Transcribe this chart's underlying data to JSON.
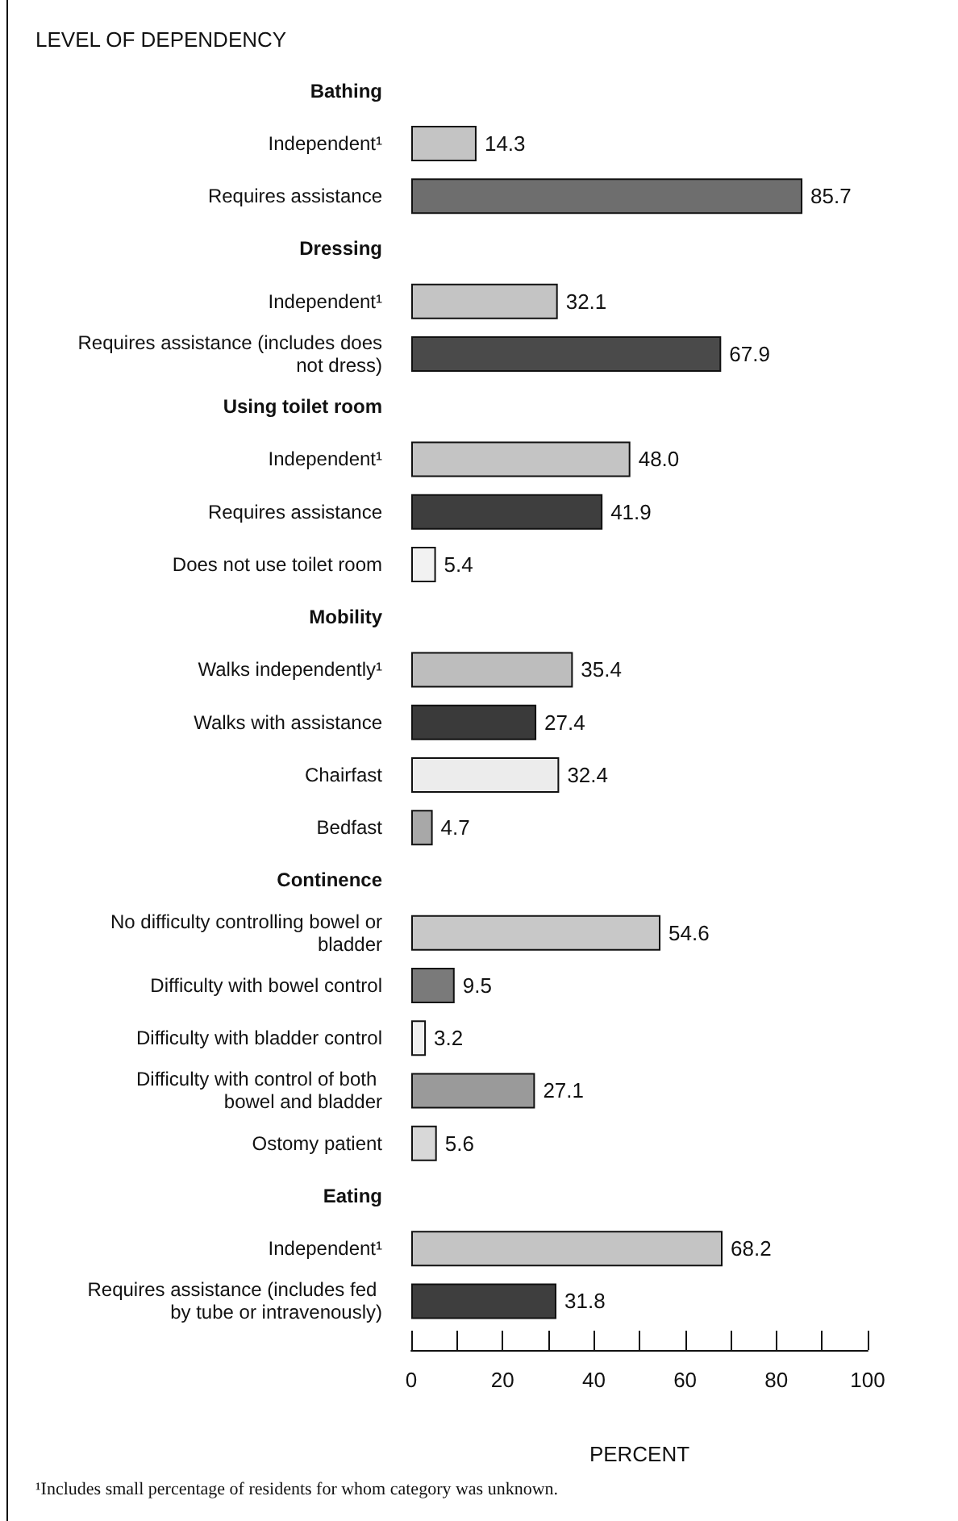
{
  "chart_data": {
    "type": "bar",
    "orientation": "horizontal",
    "ylabel": "LEVEL OF DEPENDENCY",
    "xlabel": "PERCENT",
    "categories": [
      "Bathing",
      "Independent¹",
      "Requires assistance",
      "Dressing",
      "Independent¹",
      "Requires assistance (includes does not dress)",
      "Using toilet room",
      "Independent¹",
      "Requires assistance",
      "Does not use toilet room",
      "Mobility",
      "Walks independently¹",
      "Walks with assistance",
      "Chairfast",
      "Bedfast",
      "Continence",
      "No difficulty controlling bowel or bladder",
      "Difficulty with bowel control",
      "Difficulty with bladder control",
      "Difficulty with control of both bowel and bladder",
      "Ostomy patient",
      "Eating",
      "Independent¹",
      "Requires assistance (includes fed by tube or intravenously)"
    ],
    "values": [
      null,
      14.3,
      85.7,
      null,
      32.1,
      67.9,
      null,
      48.0,
      41.9,
      5.4,
      null,
      35.4,
      27.4,
      32.4,
      4.7,
      null,
      54.6,
      9.5,
      3.2,
      27.1,
      5.6,
      null,
      68.2,
      31.8
    ],
    "value_labels": [
      null,
      "14.3",
      "85.7",
      null,
      "32.1",
      "67.9",
      null,
      "48.0",
      "41.9",
      "5.4",
      null,
      "35.4",
      "27.4",
      "32.4",
      "4.7",
      null,
      "54.6",
      "9.5",
      "3.2",
      "27.1",
      "5.6",
      null,
      "68.2",
      "31.8"
    ],
    "colors": [
      "#ffffff",
      "#c4c4c4",
      "#6e6e6e",
      "#ffffff",
      "#c4c4c4",
      "#4a4a4a",
      "#ffffff",
      "#c4c4c4",
      "#3e3e3e",
      "#f2f2f2",
      "#ffffff",
      "#bdbdbd",
      "#3a3a3a",
      "#ececec",
      "#a8a8a8",
      "#ffffff",
      "#c8c8c8",
      "#7a7a7a",
      "#f0f0f0",
      "#9a9a9a",
      "#d8d8d8",
      "#ffffff",
      "#c4c4c4",
      "#3e3e3e"
    ],
    "xlim": [
      0,
      100
    ],
    "xticks": [
      0,
      {
        "value": 10,
        "label": null
      },
      20,
      {
        "value": 30,
        "label": null
      },
      40,
      {
        "value": 50,
        "label": null
      },
      60,
      {
        "value": 70,
        "label": null
      },
      80,
      {
        "value": 90,
        "label": null
      },
      100
    ],
    "grid": false,
    "annotations": [
      "¹Includes small percentage of residents for whom category was unknown."
    ]
  }
}
